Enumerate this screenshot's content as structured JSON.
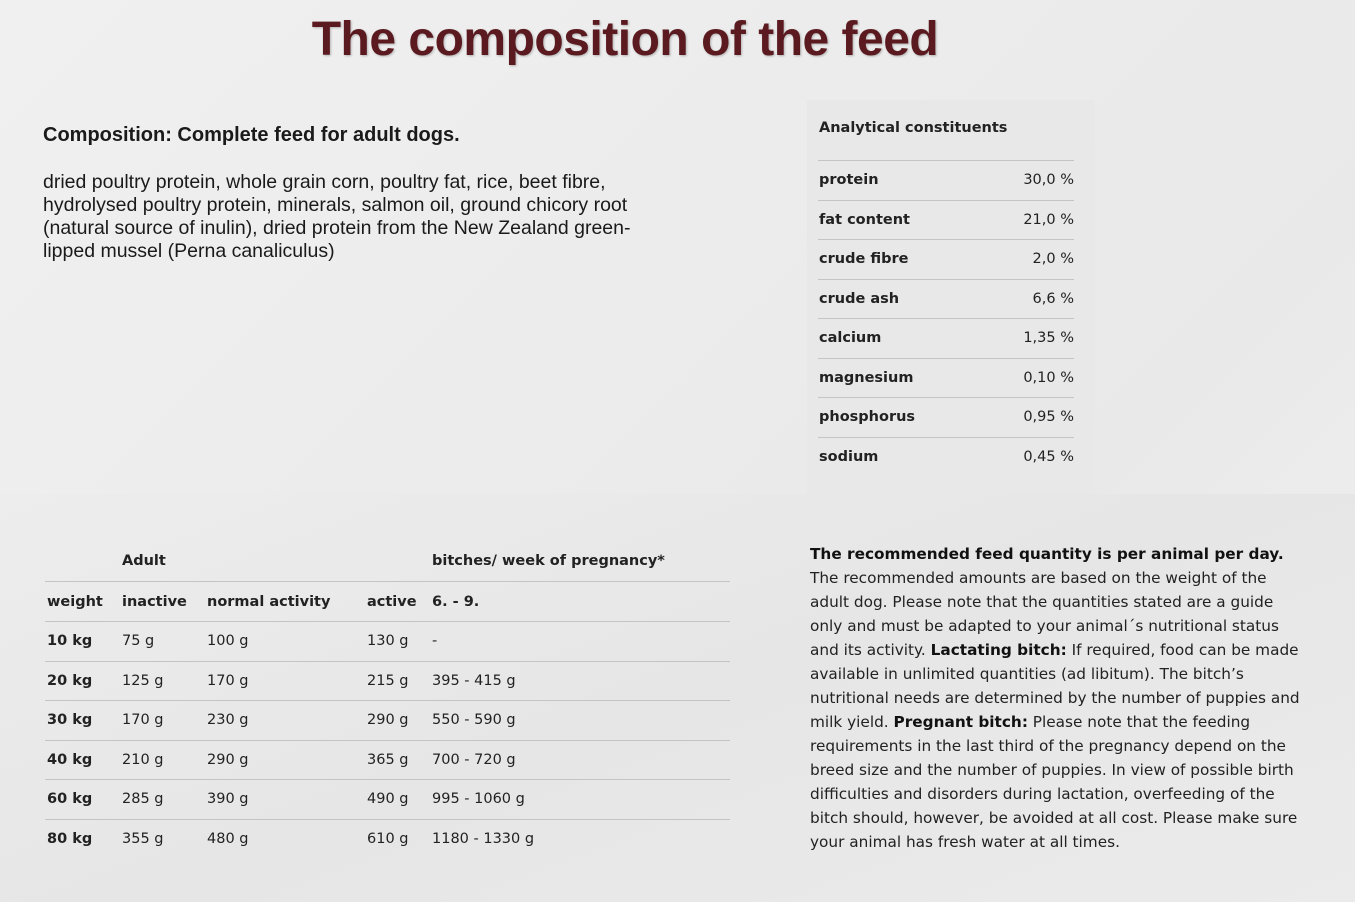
{
  "title": "The composition of the feed",
  "composition": {
    "heading": "Composition: Complete feed for adult dogs.",
    "ingredients": "dried poultry protein, whole grain corn, poultry fat, rice, beet fibre, hydrolysed poultry protein, minerals, salmon oil, ground chicory root (natural source of inulin), dried protein from the New Zealand green-lipped mussel (Perna canaliculus)"
  },
  "analytical": {
    "heading": "Analytical constituents",
    "rows": [
      {
        "name": "protein",
        "value": "30,0 %"
      },
      {
        "name": "fat content",
        "value": "21,0 %"
      },
      {
        "name": "crude fibre",
        "value": "2,0 %"
      },
      {
        "name": "crude ash",
        "value": "6,6 %"
      },
      {
        "name": "calcium",
        "value": "1,35 %"
      },
      {
        "name": "magnesium",
        "value": "0,10 %"
      },
      {
        "name": "phosphorus",
        "value": "0,95 %"
      },
      {
        "name": "sodium",
        "value": "0,45 %"
      }
    ]
  },
  "feeding": {
    "group_adult": "Adult",
    "group_pregnancy": "bitches/ week of pregnancy*",
    "headers": [
      "weight",
      "inactive",
      "normal activity",
      "active",
      "6. - 9."
    ],
    "rows": [
      [
        "10 kg",
        "75 g",
        "100 g",
        "130 g",
        "-"
      ],
      [
        "20 kg",
        "125 g",
        "170 g",
        "215 g",
        "395 - 415 g"
      ],
      [
        "30 kg",
        "170 g",
        "230 g",
        "290 g",
        "550 - 590 g"
      ],
      [
        "40 kg",
        "210 g",
        "290 g",
        "365 g",
        "700 - 720 g"
      ],
      [
        "60 kg",
        "285 g",
        "390 g",
        "490 g",
        "995 - 1060 g"
      ],
      [
        "80 kg",
        "355 g",
        "480 g",
        "610 g",
        "1180 - 1330 g"
      ]
    ]
  },
  "recommendation": {
    "lead_bold": "The recommended feed quantity is per animal per day.",
    "lead_text": " The recommended amounts are based on the weight of the adult dog. Please note that the quantities stated are a guide only and must be adapted to your animal´s nutritional status and its activity. ",
    "lactating_bold": "Lactating bitch:",
    "lactating_text": " If required, food can be made available in unlimited quantities (ad libitum). The bitch’s nutritional needs are determined by the number of puppies and milk yield. ",
    "pregnant_bold": "Pregnant bitch:",
    "pregnant_text": " Please note that the feeding requirements in the last third of the pregnancy depend on the breed size and the number of puppies. In view of possible birth difficulties and disorders during lactation, overfeeding of the bitch should, however, be avoided at all cost. Please make sure your animal has fresh water at all times."
  }
}
